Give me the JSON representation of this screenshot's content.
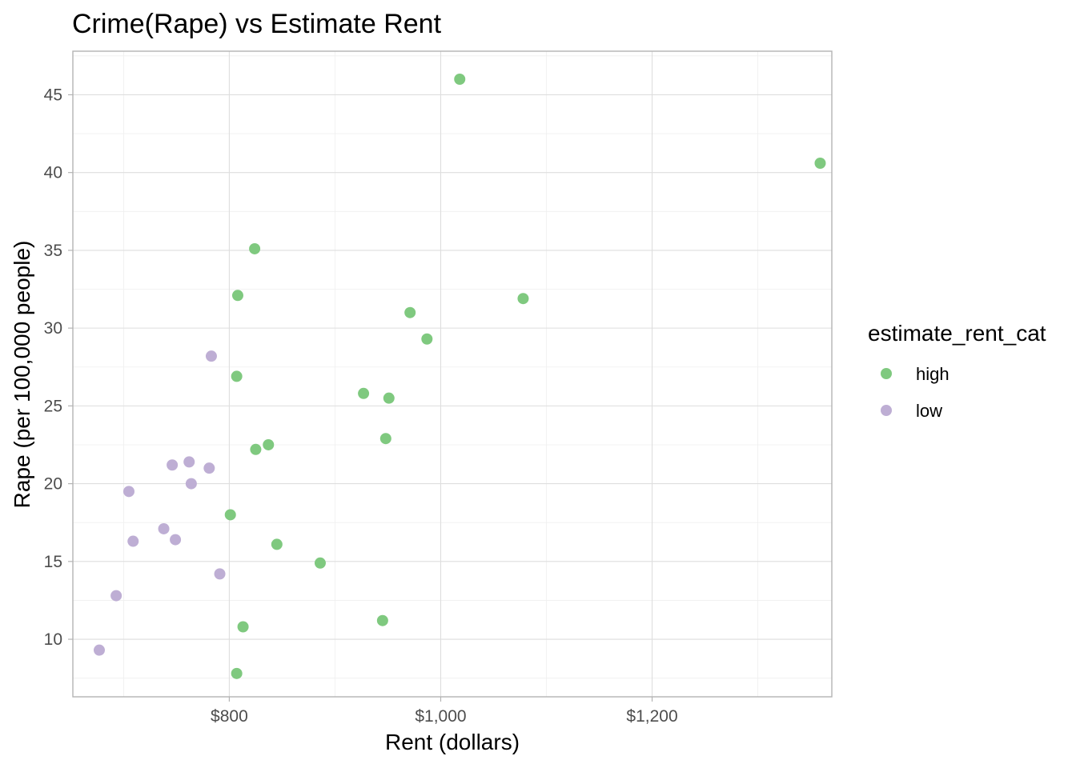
{
  "chart_data": {
    "type": "scatter",
    "title": "Crime(Rape) vs Estimate Rent",
    "xlabel": "Rent (dollars)",
    "ylabel": "Rape (per 100,000 people)",
    "xlim": [
      652,
      1370
    ],
    "ylim": [
      6.3,
      47.8
    ],
    "x_ticks": [
      800,
      1000,
      1200
    ],
    "x_tick_labels": [
      "$800",
      "$1,000",
      "$1,200"
    ],
    "y_ticks": [
      10,
      15,
      20,
      25,
      30,
      35,
      40,
      45
    ],
    "y_tick_labels": [
      "10",
      "15",
      "20",
      "25",
      "30",
      "35",
      "40",
      "45"
    ],
    "grid": true,
    "legend": {
      "title": "estimate_rent_cat",
      "placement": "right",
      "entries": [
        {
          "label": "high",
          "color": "#7fc97f"
        },
        {
          "label": "low",
          "color": "#beaed4"
        }
      ]
    },
    "series": [
      {
        "name": "high",
        "color": "#7fc97f",
        "points": [
          {
            "x": 1018,
            "y": 46.0
          },
          {
            "x": 1359,
            "y": 40.6
          },
          {
            "x": 824,
            "y": 35.1
          },
          {
            "x": 808,
            "y": 32.1
          },
          {
            "x": 1078,
            "y": 31.9
          },
          {
            "x": 971,
            "y": 31.0
          },
          {
            "x": 987,
            "y": 29.3
          },
          {
            "x": 807,
            "y": 26.9
          },
          {
            "x": 927,
            "y": 25.8
          },
          {
            "x": 951,
            "y": 25.5
          },
          {
            "x": 948,
            "y": 22.9
          },
          {
            "x": 837,
            "y": 22.5
          },
          {
            "x": 825,
            "y": 22.2
          },
          {
            "x": 801,
            "y": 18.0
          },
          {
            "x": 845,
            "y": 16.1
          },
          {
            "x": 886,
            "y": 14.9
          },
          {
            "x": 945,
            "y": 11.2
          },
          {
            "x": 813,
            "y": 10.8
          },
          {
            "x": 807,
            "y": 7.8
          }
        ]
      },
      {
        "name": "low",
        "color": "#beaed4",
        "points": [
          {
            "x": 783,
            "y": 28.2
          },
          {
            "x": 762,
            "y": 21.4
          },
          {
            "x": 746,
            "y": 21.2
          },
          {
            "x": 781,
            "y": 21.0
          },
          {
            "x": 764,
            "y": 20.0
          },
          {
            "x": 705,
            "y": 19.5
          },
          {
            "x": 738,
            "y": 17.1
          },
          {
            "x": 749,
            "y": 16.4
          },
          {
            "x": 709,
            "y": 16.3
          },
          {
            "x": 791,
            "y": 14.2
          },
          {
            "x": 693,
            "y": 12.8
          },
          {
            "x": 677,
            "y": 9.3
          }
        ]
      }
    ]
  }
}
